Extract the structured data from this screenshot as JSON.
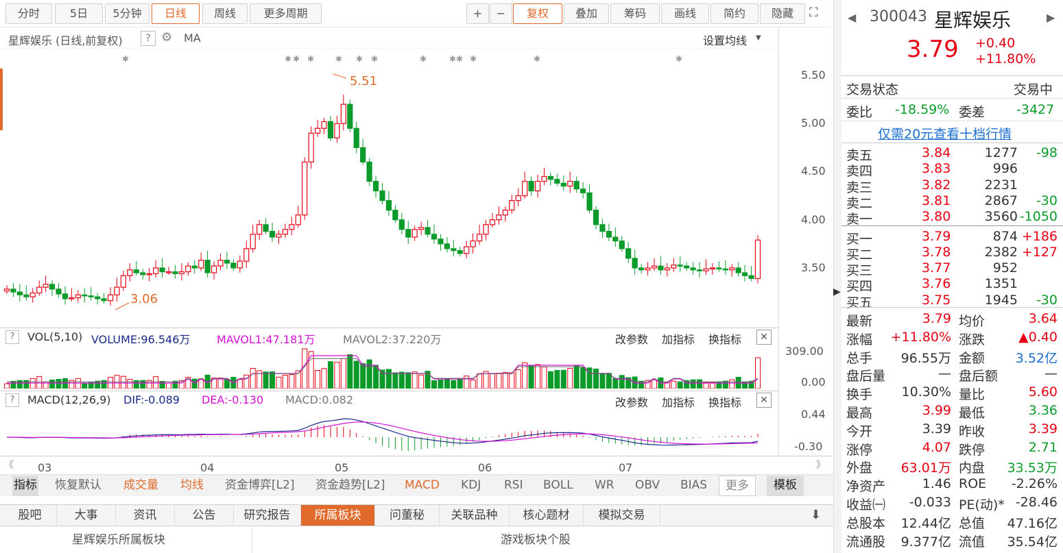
{
  "toolbar": {
    "periods": [
      "分时",
      "5日",
      "5分钟",
      "日线",
      "周线",
      "更多周期"
    ],
    "active": "日线",
    "tools": [
      "+",
      "−",
      "复权",
      "叠加",
      "筹码",
      "画线",
      "简约",
      "隐藏"
    ]
  },
  "chart": {
    "title": "星辉娱乐 (日线,前复权)",
    "ma_label": "MA",
    "ma_setting": "设置均线",
    "high_mark": "5.51",
    "low_mark": "3.06",
    "price_ticks": [
      "5.50",
      "5.00",
      "4.50",
      "4.00",
      "3.50"
    ],
    "vol_label": "VOL(5,10)",
    "vol_volume": "VOLUME:96.546万",
    "vol_ma1": "MAVOL1:47.181万",
    "vol_ma2": "MAVOL2:37.220万",
    "vol_ticks": [
      "309.00",
      "0.00"
    ],
    "macd_label": "MACD(12,26,9)",
    "macd_dif": "DIF:-0.089",
    "macd_dea": "DEA:-0.130",
    "macd_val": "MACD:0.082",
    "macd_ticks": [
      "0.44",
      "-0.30"
    ],
    "panel_actions": [
      "改参数",
      "加指标",
      "换指标"
    ],
    "months": [
      "03",
      "04",
      "05",
      "06",
      "07"
    ]
  },
  "indicators": {
    "left": [
      "指标",
      "恢复默认",
      "成交量",
      "均线",
      "资金博弈[L2]",
      "资金趋势[L2]",
      "MACD",
      "KDJ",
      "RSI",
      "BOLL",
      "WR",
      "OBV",
      "BIAS"
    ],
    "more": "更多",
    "template": "模板"
  },
  "bottom_tabs": [
    "股吧",
    "大事",
    "资讯",
    "公告",
    "研究报告",
    "所属板块",
    "问董秘",
    "关联品种",
    "核心题材",
    "模拟交易"
  ],
  "bottom_active": "所属板块",
  "bottom_row": {
    "left": "星辉娱乐所属板块",
    "right": "游戏板块个股"
  },
  "quote": {
    "code": "300043",
    "name": "星辉娱乐",
    "price": "3.79",
    "change": "+0.40",
    "pct": "+11.80%",
    "status_label": "交易状态",
    "status": "交易中",
    "wb_label": "委比",
    "wb": "-18.59%",
    "wc_label": "委差",
    "wc": "-3427",
    "promo": "仅需20元查看十档行情",
    "asks": [
      [
        "卖五",
        "3.84",
        "1277",
        "-98"
      ],
      [
        "卖四",
        "3.83",
        "996",
        ""
      ],
      [
        "卖三",
        "3.82",
        "2231",
        ""
      ],
      [
        "卖二",
        "3.81",
        "2867",
        "-30"
      ],
      [
        "卖一",
        "3.80",
        "3560",
        "-1050"
      ]
    ],
    "bids": [
      [
        "买一",
        "3.79",
        "874",
        "+186"
      ],
      [
        "买二",
        "3.78",
        "2382",
        "+127"
      ],
      [
        "买三",
        "3.77",
        "952",
        ""
      ],
      [
        "买四",
        "3.76",
        "1351",
        ""
      ],
      [
        "买五",
        "3.75",
        "1945",
        "-30"
      ]
    ],
    "stats": [
      [
        "最新",
        "3.79",
        "均价",
        "3.64"
      ],
      [
        "涨幅",
        "+11.80%",
        "涨跌",
        "▲0.40"
      ],
      [
        "总手",
        "96.55万",
        "金额",
        "3.52亿"
      ],
      [
        "盘后量",
        "—",
        "盘后额",
        "—"
      ],
      [
        "换手",
        "10.30%",
        "量比",
        "5.60"
      ],
      [
        "最高",
        "3.99",
        "最低",
        "3.36"
      ],
      [
        "今开",
        "3.39",
        "昨收",
        "3.39"
      ],
      [
        "涨停",
        "4.07",
        "跌停",
        "2.71"
      ],
      [
        "外盘",
        "63.01万",
        "内盘",
        "33.53万"
      ],
      [
        "净资产",
        "1.46",
        "ROE",
        "-2.26%"
      ],
      [
        "收益㈠",
        "-0.033",
        "PE(动)*",
        "-28.46"
      ],
      [
        "总股本",
        "12.44亿",
        "总值",
        "47.16亿"
      ],
      [
        "流通股",
        "9.377亿",
        "流值",
        "35.54亿"
      ]
    ]
  },
  "colors": {
    "up": "#e60012",
    "down": "#0a9b2b",
    "accent": "#e06a2b",
    "blue": "#1a6fd0"
  },
  "chart_data": {
    "type": "candlestick",
    "closes": [
      3.28,
      3.25,
      3.22,
      3.2,
      3.24,
      3.3,
      3.33,
      3.28,
      3.23,
      3.18,
      3.19,
      3.22,
      3.21,
      3.2,
      3.18,
      3.16,
      3.22,
      3.3,
      3.42,
      3.48,
      3.45,
      3.43,
      3.44,
      3.5,
      3.46,
      3.46,
      3.44,
      3.46,
      3.52,
      3.5,
      3.58,
      3.45,
      3.52,
      3.58,
      3.55,
      3.5,
      3.57,
      3.7,
      3.85,
      3.95,
      3.88,
      3.82,
      3.85,
      3.9,
      3.95,
      4.05,
      4.6,
      4.9,
      4.95,
      5.02,
      4.85,
      5.0,
      5.2,
      4.95,
      4.75,
      4.6,
      4.4,
      4.3,
      4.2,
      4.1,
      4.0,
      3.9,
      3.82,
      3.9,
      3.92,
      3.85,
      3.8,
      3.75,
      3.7,
      3.68,
      3.65,
      3.72,
      3.78,
      3.85,
      3.95,
      4.0,
      4.05,
      4.1,
      4.2,
      4.25,
      4.4,
      4.3,
      4.4,
      4.45,
      4.42,
      4.38,
      4.35,
      4.4,
      4.32,
      4.28,
      4.1,
      3.95,
      3.88,
      3.82,
      3.78,
      3.7,
      3.6,
      3.5,
      3.48,
      3.5,
      3.52,
      3.48,
      3.5,
      3.53,
      3.52,
      3.5,
      3.48,
      3.47,
      3.49,
      3.5,
      3.49,
      3.48,
      3.5,
      3.45,
      3.42,
      3.39,
      3.79
    ]
  }
}
